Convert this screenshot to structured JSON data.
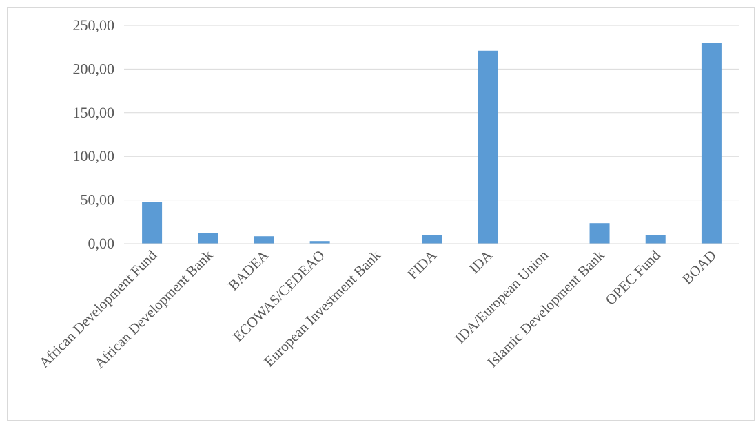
{
  "chart_data": {
    "type": "bar",
    "categories": [
      "African Development Fund",
      "African Development Bank",
      "BADEA",
      "ECOWAS/CEDEAO",
      "European Investment Bank",
      "FIDA",
      "IDA",
      "IDA/European Union",
      "Islamic Development Bank",
      "OPEC Fund",
      "BOAD"
    ],
    "values": [
      47.5,
      12.0,
      8.5,
      3.0,
      0.0,
      9.5,
      221.0,
      0.0,
      23.5,
      9.5,
      229.5
    ],
    "ylim": [
      0,
      250
    ],
    "yticks": [
      0,
      50,
      100,
      150,
      200,
      250
    ],
    "ytick_labels": [
      "0,00",
      "50,00",
      "100,00",
      "150,00",
      "200,00",
      "250,00"
    ],
    "grid": true,
    "legend": "none",
    "bar_color": "#5b9bd5",
    "title": "",
    "xlabel": "",
    "ylabel": ""
  }
}
